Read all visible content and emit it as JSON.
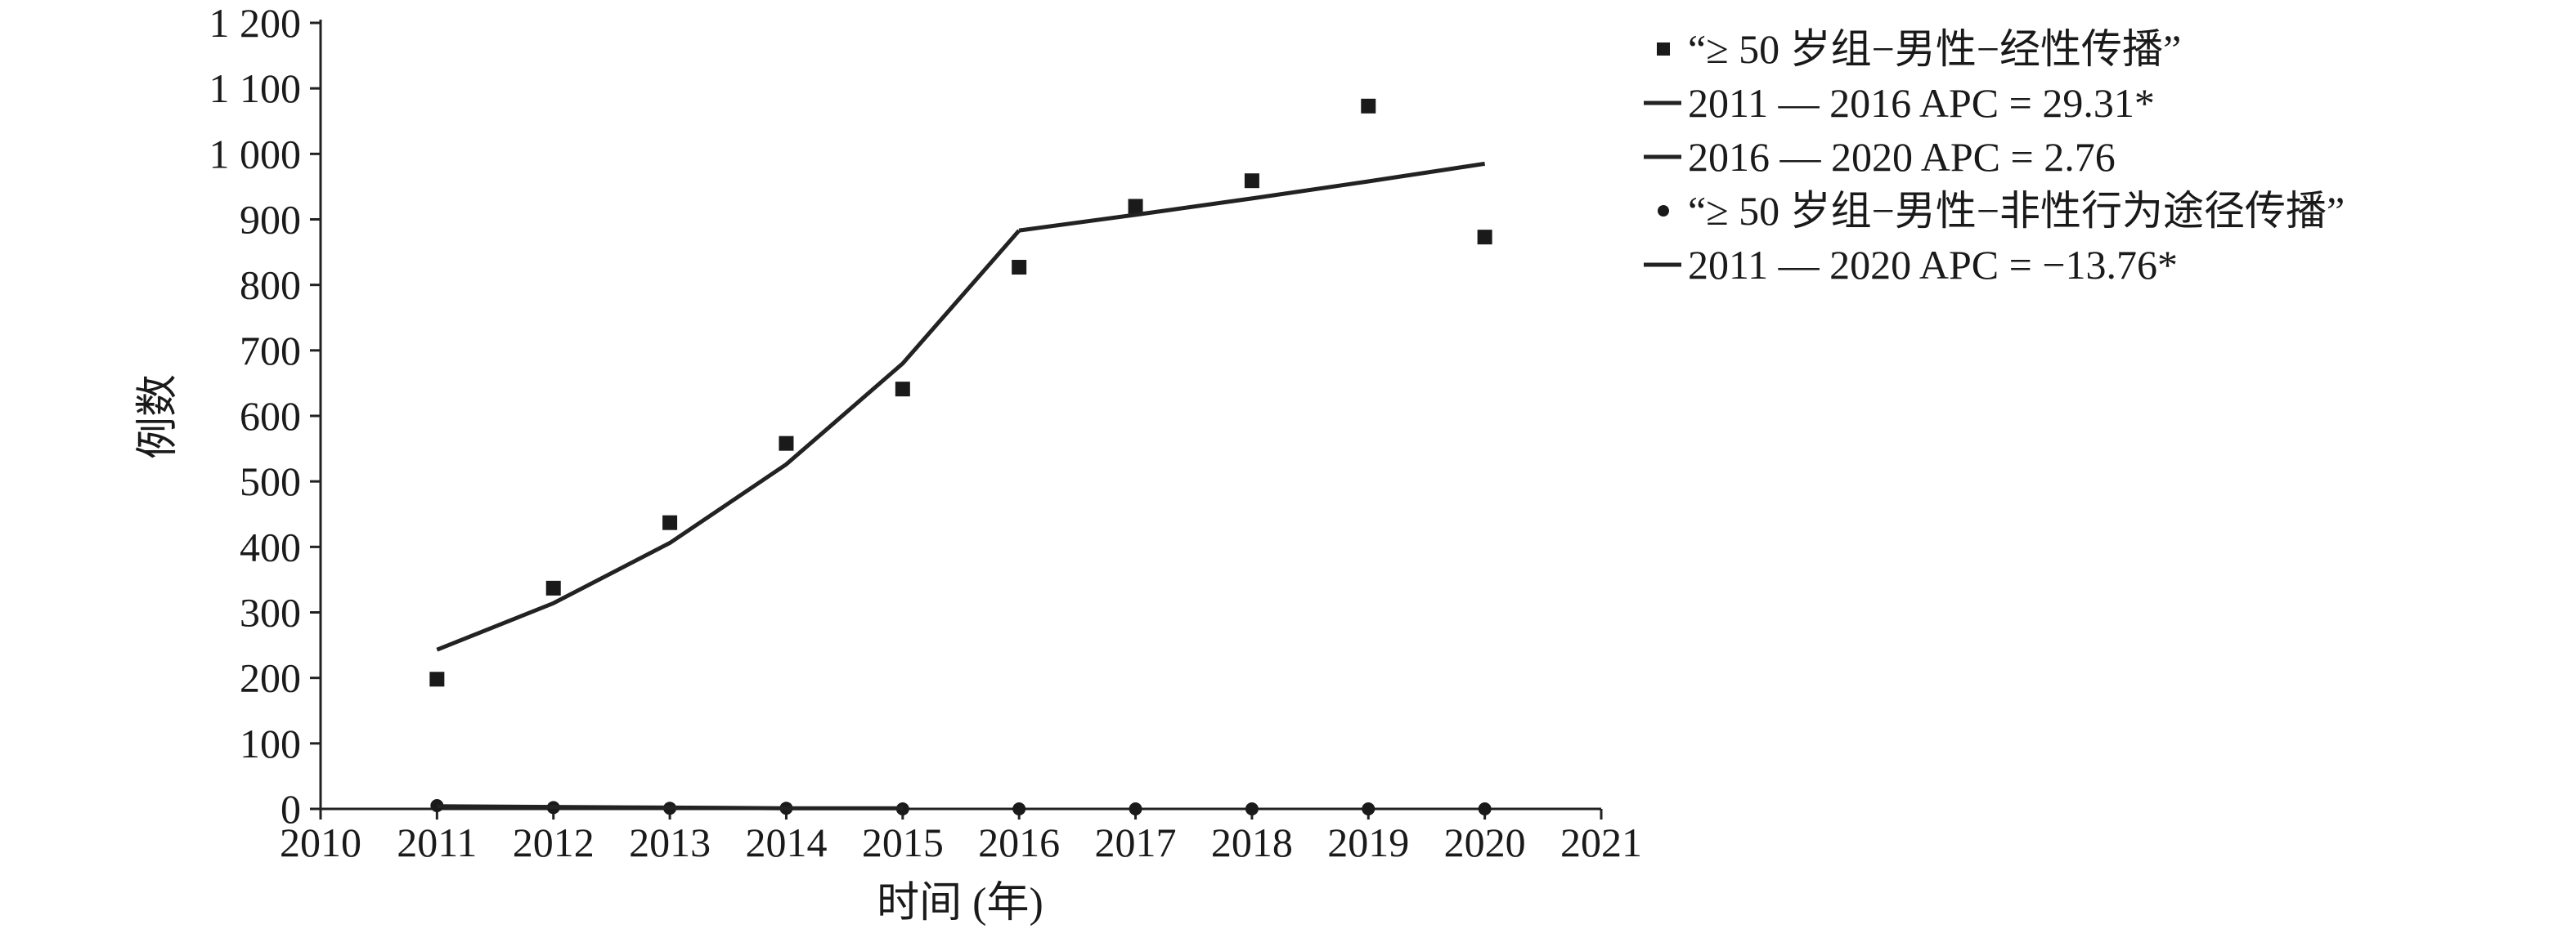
{
  "chart_data": {
    "type": "scatter",
    "xlabel": "时间 (年)",
    "ylabel": "例数",
    "xlim": [
      2010,
      2021
    ],
    "ylim": [
      0,
      1200
    ],
    "x_ticks": [
      "2010",
      "2011",
      "2012",
      "2013",
      "2014",
      "2015",
      "2016",
      "2017",
      "2018",
      "2019",
      "2020",
      "2021"
    ],
    "y_ticks": [
      "0",
      "100",
      "200",
      "300",
      "400",
      "500",
      "600",
      "700",
      "800",
      "900",
      "1 000",
      "1 100",
      "1 200"
    ],
    "grid": false,
    "legend_position": "top-right",
    "series": [
      {
        "name": "“≥ 50 岁组−男性−经性传播”",
        "marker": "square",
        "x": [
          2011,
          2012,
          2013,
          2014,
          2015,
          2016,
          2017,
          2018,
          2019,
          2020
        ],
        "values": [
          198,
          337,
          437,
          558,
          641,
          827,
          920,
          959,
          1073,
          873
        ]
      },
      {
        "name": "2011 — 2016 APC = 29.31*",
        "type": "line",
        "x": [
          2011,
          2012,
          2013,
          2014,
          2015,
          2016
        ],
        "values": [
          243,
          314,
          406,
          526,
          680,
          883
        ]
      },
      {
        "name": "2016 — 2020 APC = 2.76",
        "type": "line",
        "x": [
          2016,
          2017,
          2018,
          2019,
          2020
        ],
        "values": [
          883,
          907,
          932,
          958,
          985
        ]
      },
      {
        "name": "“≥ 50 岁组−男性−非性行为途径传播”",
        "marker": "circle",
        "x": [
          2011,
          2012,
          2013,
          2014,
          2015,
          2016,
          2017,
          2018,
          2019,
          2020
        ],
        "values": [
          5,
          2,
          1,
          1,
          0,
          0,
          0,
          0,
          0,
          0
        ]
      },
      {
        "name": "2011 — 2020 APC = −13.76*",
        "type": "line",
        "x": [
          2011,
          2012,
          2013,
          2014,
          2015
        ],
        "values": [
          4,
          3,
          2,
          1,
          1
        ]
      }
    ]
  }
}
